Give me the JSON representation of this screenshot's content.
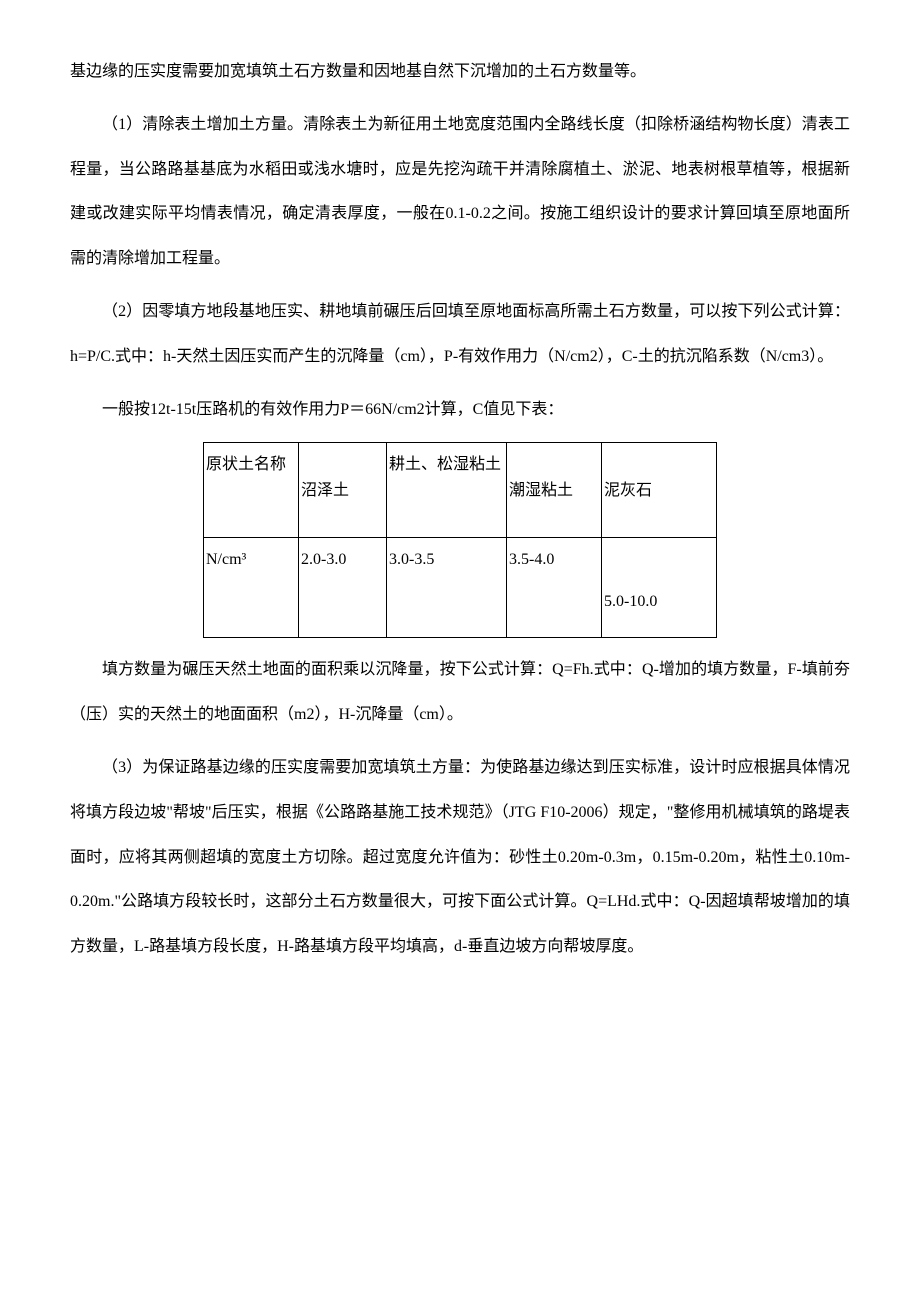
{
  "paragraphs": {
    "p1": "基边缘的压实度需要加宽填筑土石方数量和因地基自然下沉增加的土石方数量等。",
    "p2": "（1）清除表土增加土方量。清除表土为新征用土地宽度范围内全路线长度（扣除桥涵结构物长度）清表工程量，当公路路基基底为水稻田或浅水塘时，应是先挖沟疏干并清除腐植土、淤泥、地表树根草植等，根据新建或改建实际平均情表情况，确定清表厚度，一般在0.1-0.2之间。按施工组织设计的要求计算回填至原地面所需的清除增加工程量。",
    "p3": "（2）因零填方地段基地压实、耕地填前碾压后回填至原地面标高所需土石方数量，可以按下列公式计算：h=P/C.式中：h-天然土因压实而产生的沉降量（cm），P-有效作用力（N/cm2），C-土的抗沉陷系数（N/cm3）。",
    "p4": "一般按12t-15t压路机的有效作用力P＝66N/cm2计算，C值见下表：",
    "p5": "填方数量为碾压天然土地面的面积乘以沉降量，按下公式计算：Q=Fh.式中：Q-增加的填方数量，F-填前夯（压）实的天然土的地面面积（m2），H-沉降量（cm）。",
    "p6": "（3）为保证路基边缘的压实度需要加宽填筑土方量：为使路基边缘达到压实标准，设计时应根据具体情况将填方段边坡\"帮坡\"后压实，根据《公路路基施工技术规范》（JTG F10-2006）规定，\"整修用机械填筑的路堤表面时，应将其两侧超填的宽度土方切除。超过宽度允许值为：砂性土0.20m-0.3m，0.15m-0.20m，粘性土0.10m-0.20m.\"公路填方段较长时，这部分土石方数量很大，可按下面公式计算。Q=LHd.式中：Q-因超填帮坡增加的填方数量，L-路基填方段长度，H-路基填方段平均填高，d-垂直边坡方向帮坡厚度。"
  },
  "table": {
    "header": {
      "c1": "原状土名称",
      "c2": "沼泽土",
      "c3": "耕土、松湿粘土",
      "c4": "潮湿粘土",
      "c5": "泥灰石"
    },
    "row": {
      "c1": "N/cm³",
      "c2": "2.0-3.0",
      "c3": "3.0-3.5",
      "c4": "3.5-4.0",
      "c5": "5.0-10.0"
    }
  }
}
